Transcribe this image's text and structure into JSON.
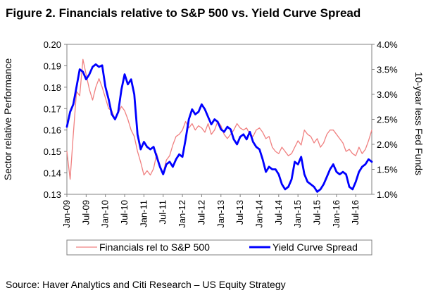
{
  "page": {
    "title": "Figure 2. Financials relative to S&P 500 vs. Yield Curve Spread",
    "source": "Source: Haver Analytics and Citi Research – US Equity Strategy"
  },
  "chart_data": {
    "type": "line",
    "title": "Figure 2. Financials relative to S&P 500 vs. Yield Curve Spread",
    "ylabel_left": "Sector relative Performance",
    "ylabel_right": "10-year less Fed Funds",
    "ylim_left": [
      0.13,
      0.2
    ],
    "ylim_right": [
      1.0,
      4.0
    ],
    "yticks_left": [
      "0.20",
      "0.19",
      "0.18",
      "0.17",
      "0.16",
      "0.15",
      "0.14",
      "0.13"
    ],
    "yticks_right": [
      "4.0%",
      "3.5%",
      "3.0%",
      "2.5%",
      "2.0%",
      "1.5%",
      "1.0%"
    ],
    "xticks": [
      "Jan-09",
      "Jul-09",
      "Jan-10",
      "Jul-10",
      "Jan-11",
      "Jul-11",
      "Jan-12",
      "Jul-12",
      "Jan-13",
      "Jul-13",
      "Jan-14",
      "Jul-14",
      "Jan-15",
      "Jul-15",
      "Jan-16",
      "Jul-16"
    ],
    "x_range_months": [
      0,
      95
    ],
    "grid": false,
    "legend_position": "bottom",
    "colors": {
      "financials": "#f08080",
      "yield": "#0000ff",
      "axis": "#808080"
    },
    "series": [
      {
        "name": "Financials rel to S&P 500",
        "axis": "left",
        "x": [
          0,
          1,
          2,
          3,
          4,
          5,
          6,
          7,
          8,
          9,
          10,
          11,
          12,
          13,
          14,
          15,
          16,
          17,
          18,
          19,
          20,
          21,
          22,
          23,
          24,
          25,
          26,
          27,
          28,
          29,
          30,
          31,
          32,
          33,
          34,
          35,
          36,
          37,
          38,
          39,
          40,
          41,
          42,
          43,
          44,
          45,
          46,
          47,
          48,
          49,
          50,
          51,
          52,
          53,
          54,
          55,
          56,
          57,
          58,
          59,
          60,
          61,
          62,
          63,
          64,
          65,
          66,
          67,
          68,
          69,
          70,
          71,
          72,
          73,
          74,
          75,
          76,
          77,
          78,
          79,
          80,
          81,
          82,
          83,
          84,
          85,
          86,
          87,
          88,
          89,
          90,
          91,
          92,
          93,
          94,
          95
        ],
        "values": [
          0.15,
          0.137,
          0.158,
          0.178,
          0.176,
          0.193,
          0.186,
          0.179,
          0.174,
          0.18,
          0.184,
          0.18,
          0.175,
          0.17,
          0.169,
          0.165,
          0.168,
          0.171,
          0.169,
          0.165,
          0.16,
          0.157,
          0.15,
          0.145,
          0.139,
          0.141,
          0.139,
          0.142,
          0.149,
          0.143,
          0.14,
          0.146,
          0.148,
          0.153,
          0.157,
          0.158,
          0.16,
          0.164,
          0.161,
          0.163,
          0.16,
          0.162,
          0.161,
          0.159,
          0.163,
          0.158,
          0.16,
          0.164,
          0.162,
          0.158,
          0.156,
          0.158,
          0.16,
          0.163,
          0.161,
          0.16,
          0.161,
          0.158,
          0.157,
          0.16,
          0.161,
          0.159,
          0.156,
          0.157,
          0.152,
          0.15,
          0.149,
          0.152,
          0.15,
          0.148,
          0.149,
          0.152,
          0.155,
          0.153,
          0.16,
          0.158,
          0.157,
          0.154,
          0.156,
          0.152,
          0.154,
          0.158,
          0.16,
          0.16,
          0.158,
          0.156,
          0.154,
          0.15,
          0.151,
          0.149,
          0.148,
          0.152,
          0.149,
          0.151,
          0.155,
          0.16
        ]
      },
      {
        "name": "Yield Curve Spread",
        "axis": "right",
        "x": [
          0,
          1,
          2,
          3,
          4,
          5,
          6,
          7,
          8,
          9,
          10,
          11,
          12,
          13,
          14,
          15,
          16,
          17,
          18,
          19,
          20,
          21,
          22,
          23,
          24,
          25,
          26,
          27,
          28,
          29,
          30,
          31,
          32,
          33,
          34,
          35,
          36,
          37,
          38,
          39,
          40,
          41,
          42,
          43,
          44,
          45,
          46,
          47,
          48,
          49,
          50,
          51,
          52,
          53,
          54,
          55,
          56,
          57,
          58,
          59,
          60,
          61,
          62,
          63,
          64,
          65,
          66,
          67,
          68,
          69,
          70,
          71,
          72,
          73,
          74,
          75,
          76,
          77,
          78,
          79,
          80,
          81,
          82,
          83,
          84,
          85,
          86,
          87,
          88,
          89,
          90,
          91,
          92,
          93,
          94,
          95
        ],
        "values": [
          2.35,
          2.65,
          2.8,
          3.15,
          3.5,
          3.45,
          3.3,
          3.4,
          3.55,
          3.6,
          3.55,
          3.58,
          3.15,
          2.9,
          2.6,
          2.5,
          2.65,
          3.1,
          3.4,
          3.2,
          3.3,
          3.0,
          2.2,
          1.9,
          2.05,
          1.95,
          1.9,
          1.95,
          1.75,
          1.55,
          1.4,
          1.6,
          1.65,
          1.55,
          1.7,
          1.8,
          1.75,
          2.1,
          2.5,
          2.7,
          2.6,
          2.65,
          2.8,
          2.7,
          2.55,
          2.4,
          2.5,
          2.45,
          2.3,
          2.25,
          2.35,
          2.3,
          2.1,
          2.0,
          2.15,
          2.2,
          2.1,
          2.25,
          2.05,
          1.95,
          1.9,
          1.7,
          1.45,
          1.55,
          1.5,
          1.5,
          1.4,
          1.2,
          1.1,
          1.15,
          1.3,
          1.65,
          1.6,
          1.75,
          1.4,
          1.25,
          1.2,
          1.15,
          1.05,
          1.1,
          1.2,
          1.35,
          1.5,
          1.6,
          1.45,
          1.4,
          1.45,
          1.4,
          1.15,
          1.1,
          1.25,
          1.45,
          1.55,
          1.6,
          1.7,
          1.65
        ]
      }
    ]
  }
}
